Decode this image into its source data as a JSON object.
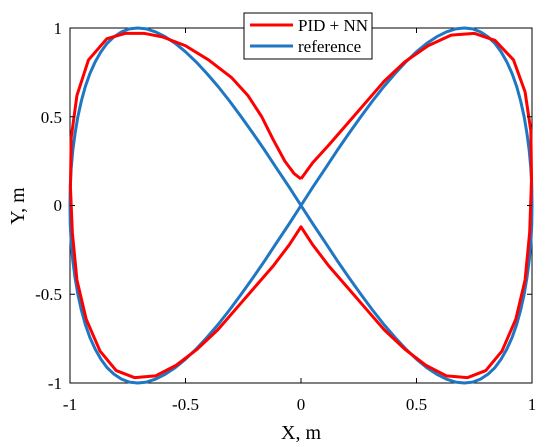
{
  "chart_data": {
    "type": "line",
    "title": "",
    "xlabel": "X, m",
    "ylabel": "Y, m",
    "xlim": [
      -1,
      1
    ],
    "ylim": [
      -1,
      1
    ],
    "xticks": [
      -1,
      -0.5,
      0,
      0.5,
      1
    ],
    "yticks": [
      -1,
      -0.5,
      0,
      0.5,
      1
    ],
    "xtick_labels": [
      "-1",
      "-0.5",
      "0",
      "0.5",
      "1"
    ],
    "ytick_labels": [
      "-1",
      "-0.5",
      "0",
      "0.5",
      "1"
    ],
    "grid": false,
    "legend_position": "top-center",
    "series": [
      {
        "name": "PID + NN",
        "color": "#ff0000",
        "x": [
          0.0,
          0.05,
          0.12,
          0.2,
          0.28,
          0.36,
          0.45,
          0.55,
          0.65,
          0.75,
          0.84,
          0.92,
          0.97,
          0.995,
          0.998,
          0.99,
          0.97,
          0.93,
          0.87,
          0.8,
          0.72,
          0.63,
          0.54,
          0.45,
          0.36,
          0.28,
          0.2,
          0.12,
          0.05,
          0.0,
          -0.05,
          -0.12,
          -0.2,
          -0.28,
          -0.36,
          -0.45,
          -0.54,
          -0.63,
          -0.72,
          -0.8,
          -0.87,
          -0.93,
          -0.97,
          -0.99,
          -0.998,
          -0.995,
          -0.97,
          -0.92,
          -0.84,
          -0.76,
          -0.68,
          -0.6,
          -0.5,
          -0.4,
          -0.3,
          -0.23,
          -0.17,
          -0.12,
          -0.07,
          -0.03,
          0.0
        ],
        "y": [
          0.15,
          0.24,
          0.34,
          0.46,
          0.58,
          0.7,
          0.81,
          0.9,
          0.96,
          0.97,
          0.93,
          0.82,
          0.64,
          0.42,
          0.15,
          -0.15,
          -0.42,
          -0.64,
          -0.82,
          -0.93,
          -0.97,
          -0.96,
          -0.9,
          -0.81,
          -0.7,
          -0.58,
          -0.46,
          -0.34,
          -0.22,
          -0.12,
          -0.22,
          -0.34,
          -0.46,
          -0.58,
          -0.7,
          -0.81,
          -0.9,
          -0.96,
          -0.97,
          -0.93,
          -0.82,
          -0.64,
          -0.42,
          -0.15,
          0.1,
          0.38,
          0.62,
          0.82,
          0.94,
          0.97,
          0.97,
          0.95,
          0.9,
          0.82,
          0.72,
          0.62,
          0.5,
          0.37,
          0.25,
          0.18,
          0.15
        ]
      },
      {
        "name": "reference",
        "color": "#1f77c4",
        "x": [
          0.0,
          0.052,
          0.105,
          0.156,
          0.208,
          0.259,
          0.309,
          0.358,
          0.407,
          0.454,
          0.5,
          0.545,
          0.588,
          0.629,
          0.669,
          0.707,
          0.743,
          0.777,
          0.809,
          0.839,
          0.866,
          0.891,
          0.914,
          0.934,
          0.951,
          0.966,
          0.978,
          0.988,
          0.995,
          0.999,
          1.0,
          0.999,
          0.995,
          0.988,
          0.978,
          0.966,
          0.951,
          0.934,
          0.914,
          0.891,
          0.866,
          0.839,
          0.809,
          0.777,
          0.743,
          0.707,
          0.669,
          0.629,
          0.588,
          0.545,
          0.5,
          0.454,
          0.407,
          0.358,
          0.309,
          0.259,
          0.208,
          0.156,
          0.105,
          0.052,
          0.0,
          -0.052,
          -0.105,
          -0.156,
          -0.208,
          -0.259,
          -0.309,
          -0.358,
          -0.407,
          -0.454,
          -0.5,
          -0.545,
          -0.588,
          -0.629,
          -0.669,
          -0.707,
          -0.743,
          -0.777,
          -0.809,
          -0.839,
          -0.866,
          -0.891,
          -0.914,
          -0.934,
          -0.951,
          -0.966,
          -0.978,
          -0.988,
          -0.995,
          -0.999,
          -1.0,
          -0.999,
          -0.995,
          -0.988,
          -0.978,
          -0.966,
          -0.951,
          -0.934,
          -0.914,
          -0.891,
          -0.866,
          -0.839,
          -0.809,
          -0.777,
          -0.743,
          -0.707,
          -0.669,
          -0.629,
          -0.588,
          -0.545,
          -0.5,
          -0.454,
          -0.407,
          -0.358,
          -0.309,
          -0.259,
          -0.208,
          -0.156,
          -0.105,
          -0.052,
          0.0
        ],
        "y": [
          0.0,
          0.105,
          0.208,
          0.309,
          0.407,
          0.5,
          0.588,
          0.669,
          0.743,
          0.809,
          0.866,
          0.914,
          0.951,
          0.978,
          0.995,
          1.0,
          0.995,
          0.978,
          0.951,
          0.914,
          0.866,
          0.809,
          0.743,
          0.669,
          0.588,
          0.5,
          0.407,
          0.309,
          0.208,
          0.105,
          0.0,
          -0.105,
          -0.208,
          -0.309,
          -0.407,
          -0.5,
          -0.588,
          -0.669,
          -0.743,
          -0.809,
          -0.866,
          -0.914,
          -0.951,
          -0.978,
          -0.995,
          -1.0,
          -0.995,
          -0.978,
          -0.951,
          -0.914,
          -0.866,
          -0.809,
          -0.743,
          -0.669,
          -0.588,
          -0.5,
          -0.407,
          -0.309,
          -0.208,
          -0.105,
          0.0,
          0.105,
          0.208,
          0.309,
          0.407,
          0.5,
          0.588,
          0.669,
          0.743,
          0.809,
          0.866,
          0.914,
          0.951,
          0.978,
          0.995,
          1.0,
          0.995,
          0.978,
          0.951,
          0.914,
          0.866,
          0.809,
          0.743,
          0.669,
          0.588,
          0.5,
          0.407,
          0.309,
          0.208,
          0.105,
          0.0,
          -0.105,
          -0.208,
          -0.309,
          -0.407,
          -0.5,
          -0.588,
          -0.669,
          -0.743,
          -0.809,
          -0.866,
          -0.914,
          -0.951,
          -0.978,
          -0.995,
          -1.0,
          -0.995,
          -0.978,
          -0.951,
          -0.914,
          -0.866,
          -0.809,
          -0.743,
          -0.669,
          -0.588,
          -0.5,
          -0.407,
          -0.309,
          -0.208,
          -0.105,
          0.0
        ]
      }
    ]
  }
}
